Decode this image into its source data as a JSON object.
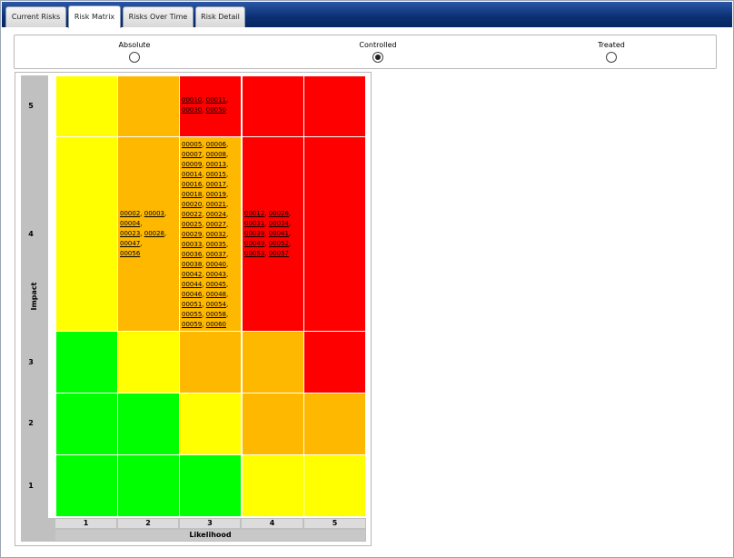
{
  "tabs": [
    {
      "label": "Current Risks",
      "active": false
    },
    {
      "label": "Risk Matrix",
      "active": true
    },
    {
      "label": "Risks Over Time",
      "active": false
    },
    {
      "label": "Risk Detail",
      "active": false
    }
  ],
  "options": [
    {
      "label": "Absolute",
      "selected": false
    },
    {
      "label": "Controlled",
      "selected": true
    },
    {
      "label": "Treated",
      "selected": false
    }
  ],
  "matrix": {
    "y_title": "Impact",
    "x_title": "Likelihood",
    "impact_levels": [
      "5",
      "4",
      "3",
      "2",
      "1"
    ],
    "likelihood_levels": [
      "1",
      "2",
      "3",
      "4",
      "5"
    ],
    "colors": {
      "red": "#ff0000",
      "orange": "#ffb800",
      "yellow": "#ffff00",
      "green": "#00ff00"
    },
    "rows": [
      {
        "impact": "5",
        "cells": [
          {
            "color": "yellow",
            "risks": []
          },
          {
            "color": "orange",
            "risks": []
          },
          {
            "color": "red",
            "risks": [
              "00010",
              "00011",
              "00030",
              "00050"
            ]
          },
          {
            "color": "red",
            "risks": []
          },
          {
            "color": "red",
            "risks": []
          }
        ]
      },
      {
        "impact": "4",
        "cells": [
          {
            "color": "yellow",
            "risks": []
          },
          {
            "color": "orange",
            "risks": [
              "00002",
              "00003",
              "00004",
              "00023",
              "00028",
              "00047",
              "00056"
            ]
          },
          {
            "color": "orange",
            "risks": [
              "00005",
              "00006",
              "00007",
              "00008",
              "00009",
              "00013",
              "00014",
              "00015",
              "00016",
              "00017",
              "00018",
              "00019",
              "00020",
              "00021",
              "00022",
              "00024",
              "00025",
              "00027",
              "00029",
              "00032",
              "00033",
              "00035",
              "00036",
              "00037",
              "00038",
              "00040",
              "00042",
              "00043",
              "00044",
              "00045",
              "00046",
              "00048",
              "00051",
              "00054",
              "00055",
              "00058",
              "00059",
              "00060"
            ]
          },
          {
            "color": "red",
            "risks": [
              "00012",
              "00026",
              "00031",
              "00034",
              "00039",
              "00041",
              "00049",
              "00052",
              "00053",
              "00057"
            ]
          },
          {
            "color": "red",
            "risks": []
          }
        ]
      },
      {
        "impact": "3",
        "cells": [
          {
            "color": "green",
            "risks": []
          },
          {
            "color": "yellow",
            "risks": []
          },
          {
            "color": "orange",
            "risks": []
          },
          {
            "color": "orange",
            "risks": []
          },
          {
            "color": "red",
            "risks": []
          }
        ]
      },
      {
        "impact": "2",
        "cells": [
          {
            "color": "green",
            "risks": []
          },
          {
            "color": "green",
            "risks": []
          },
          {
            "color": "yellow",
            "risks": []
          },
          {
            "color": "orange",
            "risks": []
          },
          {
            "color": "orange",
            "risks": []
          }
        ]
      },
      {
        "impact": "1",
        "cells": [
          {
            "color": "green",
            "risks": []
          },
          {
            "color": "green",
            "risks": []
          },
          {
            "color": "green",
            "risks": []
          },
          {
            "color": "yellow",
            "risks": []
          },
          {
            "color": "yellow",
            "risks": []
          }
        ]
      }
    ]
  }
}
